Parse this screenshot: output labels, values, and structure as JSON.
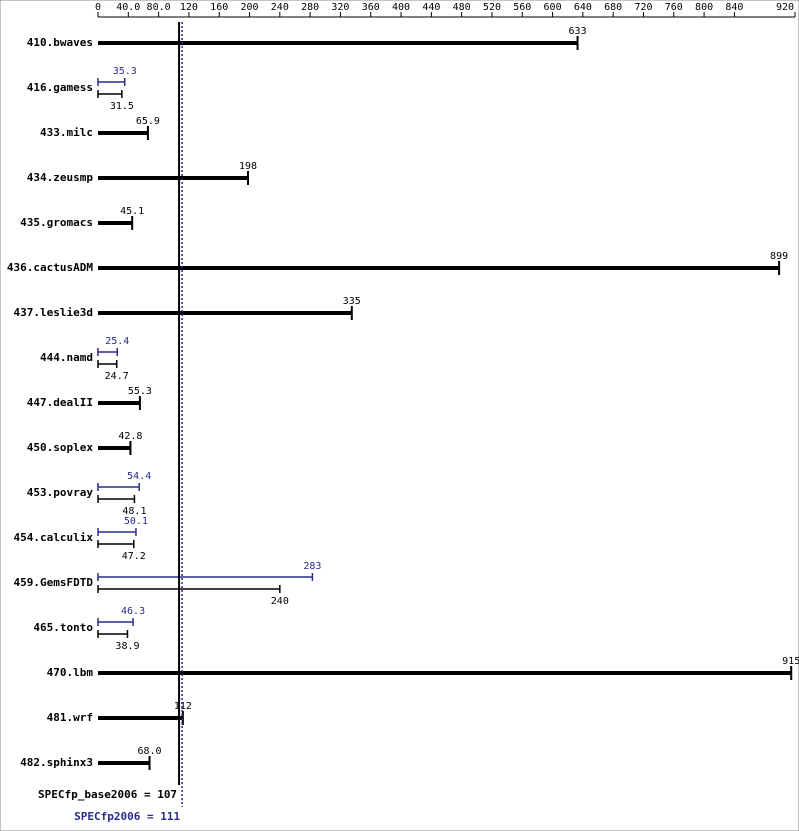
{
  "chart_data": {
    "type": "bar",
    "categories": [
      "410.bwaves",
      "416.gamess",
      "433.milc",
      "434.zeusmp",
      "435.gromacs",
      "436.cactusADM",
      "437.leslie3d",
      "444.namd",
      "447.dealII",
      "450.soplex",
      "453.povray",
      "454.calculix",
      "459.GemsFDTD",
      "465.tonto",
      "470.lbm",
      "481.wrf",
      "482.sphinx3"
    ],
    "series": [
      {
        "color": "#000000",
        "values": [
          633,
          31.5,
          65.9,
          198,
          45.1,
          899,
          335,
          24.7,
          55.3,
          42.8,
          48.1,
          47.2,
          240,
          38.9,
          915,
          112,
          68
        ],
        "value_labels": [
          "633",
          "31.5",
          "65.9",
          "198",
          "45.1",
          "899",
          "335",
          "24.7",
          "55.3",
          "42.8",
          "48.1",
          "47.2",
          "240",
          "38.9",
          "915",
          "112",
          "68.0"
        ]
      },
      {
        "color": "#2b2b8c",
        "values": [
          null,
          35.3,
          null,
          null,
          null,
          null,
          null,
          25.4,
          null,
          null,
          54.4,
          50.1,
          283,
          46.3,
          null,
          null,
          null
        ]
      }
    ],
    "reference_lines": [
      {
        "label": "SPECfp_base2006 = 107",
        "value": 107,
        "color": "#000000",
        "style": "solid"
      },
      {
        "label": "SPECfp2006 = 111",
        "value": 111,
        "color": "#2b2b8c",
        "style": "dotted"
      }
    ],
    "xlim": [
      0,
      920
    ],
    "xticks": [
      0,
      {
        "value": 40,
        "label": "40.0"
      },
      {
        "value": 80,
        "label": "80.0"
      },
      120,
      160,
      200,
      240,
      280,
      320,
      360,
      400,
      440,
      480,
      520,
      560,
      600,
      640,
      680,
      720,
      760,
      800,
      840,
      920
    ]
  }
}
